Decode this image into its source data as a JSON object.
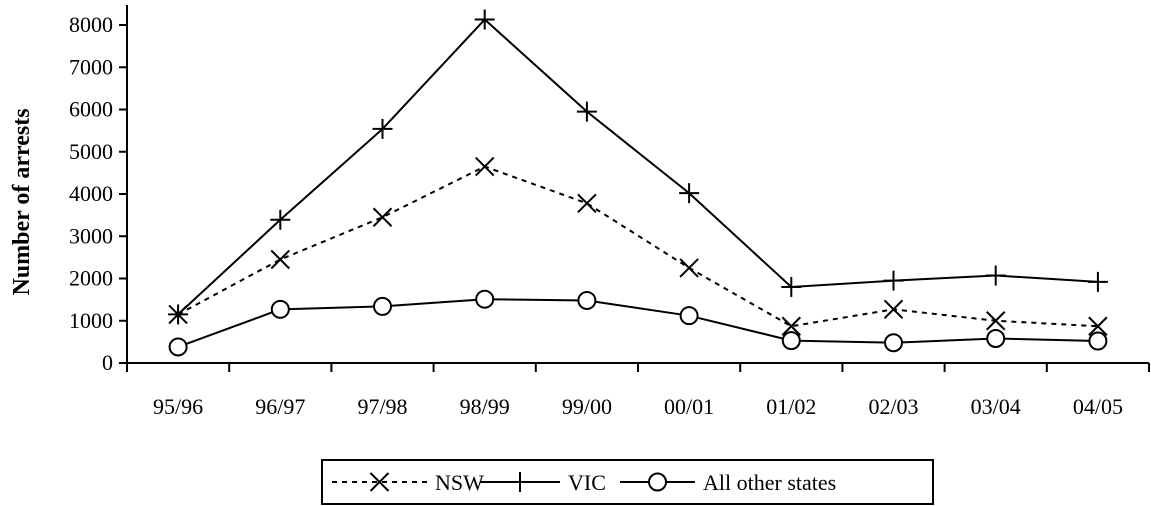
{
  "chart_data": {
    "type": "line",
    "xlabel": "",
    "ylabel": "Number of arrests",
    "ylim": [
      0,
      8000
    ],
    "yticks": [
      0,
      1000,
      2000,
      3000,
      4000,
      5000,
      6000,
      7000,
      8000
    ],
    "categories": [
      "95/96",
      "96/97",
      "97/98",
      "98/99",
      "99/00",
      "00/01",
      "01/02",
      "02/03",
      "03/04",
      "04/05"
    ],
    "series": [
      {
        "name": "NSW",
        "marker": "x",
        "line_style": "dashed",
        "values": [
          1150,
          2450,
          3450,
          4650,
          3780,
          2250,
          870,
          1270,
          1000,
          870
        ]
      },
      {
        "name": "VIC",
        "marker": "plus",
        "line_style": "solid",
        "values": [
          1150,
          3390,
          5540,
          8130,
          5950,
          4020,
          1800,
          1950,
          2070,
          1920
        ]
      },
      {
        "name": "All other states",
        "marker": "circle",
        "line_style": "solid",
        "values": [
          380,
          1270,
          1340,
          1510,
          1480,
          1120,
          530,
          480,
          580,
          520
        ]
      }
    ],
    "grid": false,
    "legend_position": "bottom"
  }
}
